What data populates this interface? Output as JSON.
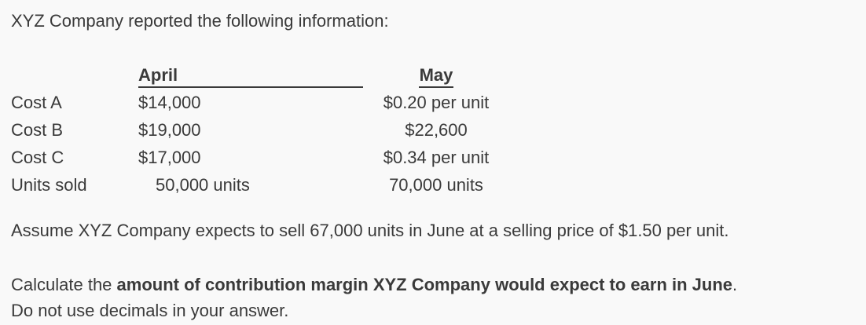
{
  "page": {
    "background_color": "#f9f9f9",
    "text_color": "#3a3a3a"
  },
  "intro": "XYZ Company reported the following information:",
  "table": {
    "columns": {
      "april": "April",
      "may": "May"
    },
    "rows": [
      {
        "label": "Cost A",
        "april": "$14,000",
        "may": "$0.20 per unit"
      },
      {
        "label": "Cost B",
        "april": "$19,000",
        "may": "$22,600"
      },
      {
        "label": "Cost C",
        "april": "$17,000",
        "may": "$0.34 per unit"
      },
      {
        "label": "Units sold",
        "april": "50,000 units",
        "may": "70,000 units"
      }
    ]
  },
  "assumption": "Assume XYZ Company expects to sell 67,000 units in June at a selling price of $1.50 per unit.",
  "question": {
    "prefix": "Calculate the ",
    "bold": "amount of contribution margin XYZ Company would expect to earn in June",
    "suffix": ".",
    "note": "Do not use decimals in your answer."
  }
}
